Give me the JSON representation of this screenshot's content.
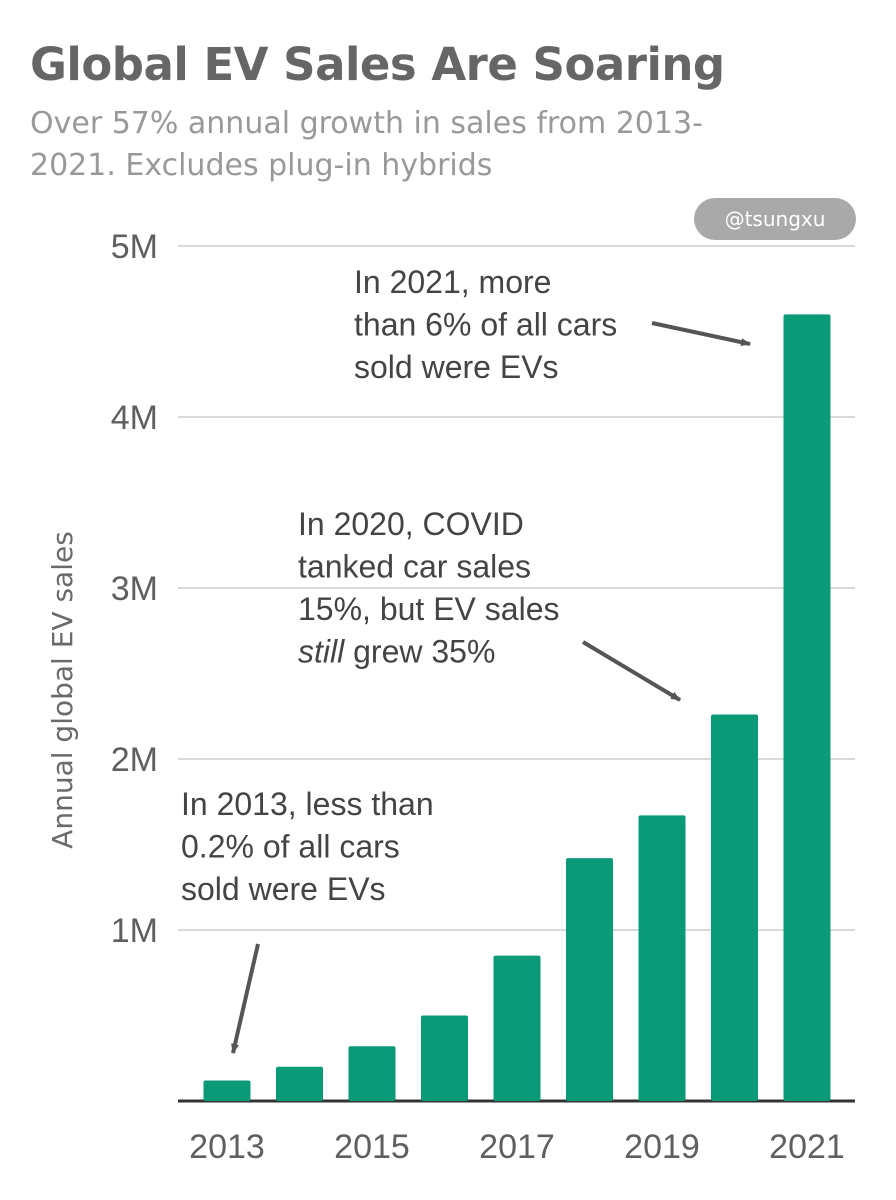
{
  "title": "Global EV Sales Are Soaring",
  "subtitle": "Over 57% annual growth in sales from 2013-2021. Excludes plug-in hybrids",
  "watermark": "@tsungxu",
  "colors": {
    "bar": "#0a9a78",
    "grid": "#d9d9d9",
    "axis": "#333333",
    "arrow": "#555555"
  },
  "chart_data": {
    "type": "bar",
    "title": "Global EV Sales Are Soaring",
    "subtitle": "Over 57% annual growth in sales from 2013-2021. Excludes plug-in hybrids",
    "xlabel": "",
    "ylabel": "Annual global EV sales",
    "categories": [
      "2013",
      "2014",
      "2015",
      "2016",
      "2017",
      "2018",
      "2019",
      "2020",
      "2021"
    ],
    "values": [
      120000,
      200000,
      320000,
      500000,
      850000,
      1420000,
      1670000,
      2260000,
      4600000
    ],
    "x_tick_labels": [
      "2013",
      "2015",
      "2017",
      "2019",
      "2021"
    ],
    "y_tick_labels": [
      "1M",
      "2M",
      "3M",
      "4M",
      "5M"
    ],
    "y_ticks": [
      1000000,
      2000000,
      3000000,
      4000000,
      5000000
    ],
    "ylim": [
      0,
      5000000
    ],
    "grid": true,
    "legend": "none",
    "annotations": [
      {
        "category": "2021",
        "lines": [
          {
            "text": "In 2021, more"
          },
          {
            "text": "than 6% of all cars"
          },
          {
            "text": "sold were EVs"
          }
        ]
      },
      {
        "category": "2020",
        "lines": [
          {
            "text": "In 2020, COVID"
          },
          {
            "text": "tanked car sales"
          },
          {
            "text": "15%, but EV sales"
          },
          {
            "text": "still",
            "italic": true,
            "rest": " grew 35%"
          }
        ]
      },
      {
        "category": "2013",
        "lines": [
          {
            "text": "In 2013, less than"
          },
          {
            "text": "0.2% of all cars"
          },
          {
            "text": "sold were EVs"
          }
        ]
      }
    ]
  }
}
